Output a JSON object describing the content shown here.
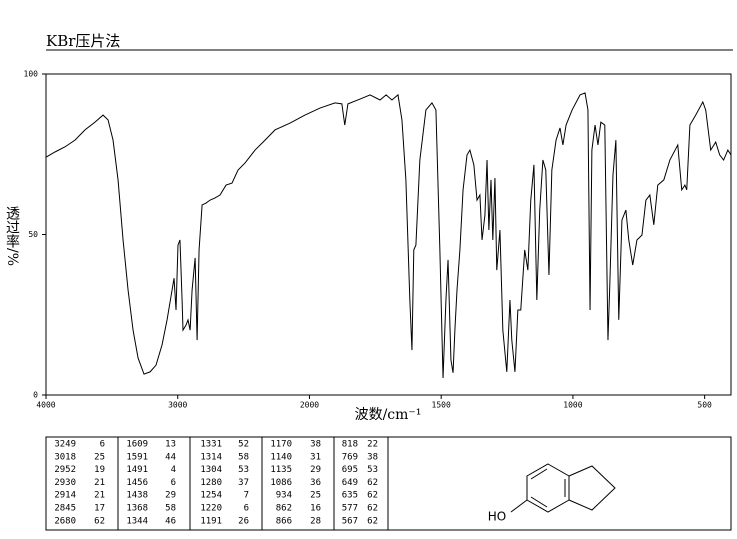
{
  "chart_data": {
    "type": "line",
    "title": "KBr压片法",
    "xlabel": "波数/cm⁻¹",
    "ylabel": "透过率/%",
    "xlim": [
      4000,
      400
    ],
    "xscale_break": 2000,
    "xticks": [
      4000,
      3000,
      2000,
      1500,
      1000,
      500
    ],
    "ylim": [
      0,
      100
    ],
    "yticks": [
      0,
      50,
      100
    ],
    "color": "#000000",
    "x": [
      4000,
      3932,
      3856,
      3780,
      3704,
      3628,
      3567,
      3529,
      3491,
      3453,
      3415,
      3377,
      3339,
      3301,
      3256,
      3210,
      3165,
      3119,
      3081,
      3043,
      3028,
      3013,
      2998,
      2983,
      2967,
      2960,
      2937,
      2922,
      2906,
      2891,
      2868,
      2853,
      2838,
      2815,
      2785,
      2755,
      2717,
      2679,
      2633,
      2588,
      2542,
      2489,
      2413,
      2337,
      2261,
      2147,
      2034,
      1960,
      1903,
      1877,
      1866,
      1854,
      1808,
      1770,
      1732,
      1709,
      1687,
      1664,
      1649,
      1634,
      1619,
      1611,
      1604,
      1596,
      1581,
      1558,
      1535,
      1520,
      1505,
      1493,
      1482,
      1474,
      1463,
      1455,
      1448,
      1440,
      1429,
      1417,
      1402,
      1391,
      1376,
      1364,
      1353,
      1345,
      1334,
      1326,
      1319,
      1311,
      1304,
      1296,
      1289,
      1277,
      1266,
      1251,
      1239,
      1232,
      1220,
      1209,
      1198,
      1183,
      1171,
      1160,
      1148,
      1137,
      1126,
      1114,
      1103,
      1091,
      1080,
      1064,
      1049,
      1038,
      1026,
      1003,
      973,
      954,
      943,
      935,
      928,
      916,
      905,
      894,
      879,
      867,
      860,
      848,
      837,
      826,
      814,
      799,
      788,
      773,
      757,
      738,
      723,
      708,
      693,
      678,
      655,
      632,
      602,
      587,
      575,
      568,
      556,
      534,
      507,
      496,
      477,
      458,
      443,
      428,
      412,
      400
    ],
    "values": [
      74.1,
      75.7,
      77.3,
      79.4,
      82.6,
      85.0,
      87.2,
      85.7,
      79.4,
      67.0,
      48.3,
      32.7,
      20.2,
      11.5,
      6.5,
      7.2,
      9.3,
      15.6,
      23.4,
      32.7,
      36.4,
      26.5,
      46.7,
      48.3,
      29.6,
      20.2,
      21.8,
      23.4,
      20.2,
      32.7,
      42.7,
      17.1,
      45.2,
      59.2,
      59.8,
      60.7,
      61.4,
      62.3,
      65.4,
      66.0,
      70.1,
      72.3,
      76.3,
      79.4,
      82.6,
      84.7,
      87.2,
      89.4,
      91.0,
      90.7,
      84.1,
      90.7,
      92.2,
      93.5,
      91.9,
      93.5,
      91.9,
      93.5,
      85.7,
      67.0,
      29.6,
      14.0,
      45.2,
      46.7,
      73.2,
      88.8,
      91.0,
      88.8,
      45.2,
      5.3,
      29.6,
      42.1,
      10.9,
      6.9,
      20.2,
      32.7,
      45.2,
      63.9,
      74.8,
      76.3,
      71.7,
      60.7,
      62.3,
      48.3,
      56.1,
      73.2,
      51.4,
      67.0,
      48.3,
      67.6,
      38.9,
      51.4,
      20.2,
      7.2,
      29.6,
      17.1,
      7.2,
      26.5,
      26.5,
      45.2,
      38.9,
      60.7,
      71.7,
      29.6,
      57.6,
      73.2,
      70.1,
      37.4,
      70.1,
      79.4,
      83.2,
      77.9,
      84.1,
      88.8,
      93.5,
      94.1,
      88.8,
      26.5,
      76.3,
      84.1,
      77.9,
      85.0,
      84.1,
      17.1,
      34.3,
      68.5,
      79.4,
      23.4,
      54.5,
      57.6,
      48.3,
      40.5,
      48.3,
      49.8,
      60.7,
      62.3,
      53.0,
      65.4,
      67.0,
      73.2,
      77.9,
      63.9,
      65.4,
      63.9,
      84.1,
      87.2,
      91.3,
      88.8,
      76.3,
      78.8,
      74.8,
      73.2,
      76.3,
      74.8
    ]
  },
  "peak_table": {
    "rows": [
      [
        3249,
        6,
        1609,
        13,
        1331,
        52,
        1170,
        38,
        818,
        22
      ],
      [
        3018,
        25,
        1591,
        44,
        1314,
        58,
        1140,
        31,
        769,
        38
      ],
      [
        2952,
        19,
        1491,
        4,
        1304,
        53,
        1135,
        29,
        695,
        53
      ],
      [
        2930,
        21,
        1456,
        6,
        1280,
        37,
        1086,
        36,
        649,
        62
      ],
      [
        2914,
        21,
        1438,
        29,
        1254,
        7,
        934,
        25,
        635,
        62
      ],
      [
        2845,
        17,
        1368,
        58,
        1220,
        6,
        862,
        16,
        577,
        62
      ],
      [
        2680,
        62,
        1344,
        46,
        1191,
        26,
        866,
        28,
        567,
        62
      ]
    ]
  },
  "structure": {
    "label": "HO"
  }
}
